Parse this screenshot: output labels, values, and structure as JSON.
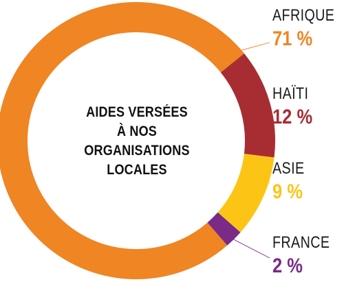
{
  "chart_data": {
    "type": "pie",
    "title": "AIDES VERSÉES À NOS ORGANISATIONS LOCALES",
    "title_lines": [
      "AIDES VERSÉES",
      "À NOS ORGANISATIONS",
      "LOCALES"
    ],
    "categories": [
      "AFRIQUE",
      "HAÏTI",
      "ASIE",
      "FRANCE"
    ],
    "values": [
      71,
      12,
      9,
      2
    ],
    "value_labels": [
      "71 %",
      "12 %",
      "9 %",
      "2 %"
    ],
    "colors": [
      "#ef8523",
      "#a72d33",
      "#fcc516",
      "#7a2a87"
    ],
    "donut": true,
    "legend_placement": "right"
  }
}
